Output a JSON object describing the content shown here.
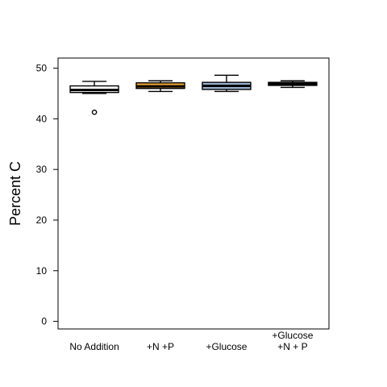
{
  "chart_data": {
    "type": "box",
    "ylabel": "Percent C",
    "ylim": [
      -1.5,
      52
    ],
    "yticks": [
      0,
      10,
      20,
      30,
      40,
      50
    ],
    "grid": false,
    "groups": [
      {
        "label_lines": [
          "No Addition"
        ],
        "whisker_low": 45.0,
        "q1": 45.2,
        "median": 45.7,
        "q3": 46.5,
        "whisker_high": 47.4,
        "outliers": [
          41.3
        ],
        "fill": "#ffffff",
        "median_color": "#000000"
      },
      {
        "label_lines": [
          "+N +P"
        ],
        "whisker_low": 45.4,
        "q1": 46.0,
        "median": 46.4,
        "q3": 47.1,
        "whisker_high": 47.5,
        "outliers": [],
        "fill": "#f0a830",
        "median_color": "#000000"
      },
      {
        "label_lines": [
          "+Glucose"
        ],
        "whisker_low": 45.4,
        "q1": 45.8,
        "median": 46.5,
        "q3": 47.2,
        "whisker_high": 48.6,
        "outliers": [],
        "fill": "#9ab5d2",
        "median_color": "#000000"
      },
      {
        "label_lines": [
          "+Glucose",
          "+N + P"
        ],
        "whisker_low": 46.2,
        "q1": 46.6,
        "median": 46.9,
        "q3": 47.2,
        "whisker_high": 47.5,
        "outliers": [],
        "fill": "#000000",
        "median_color": "#000000"
      }
    ]
  }
}
